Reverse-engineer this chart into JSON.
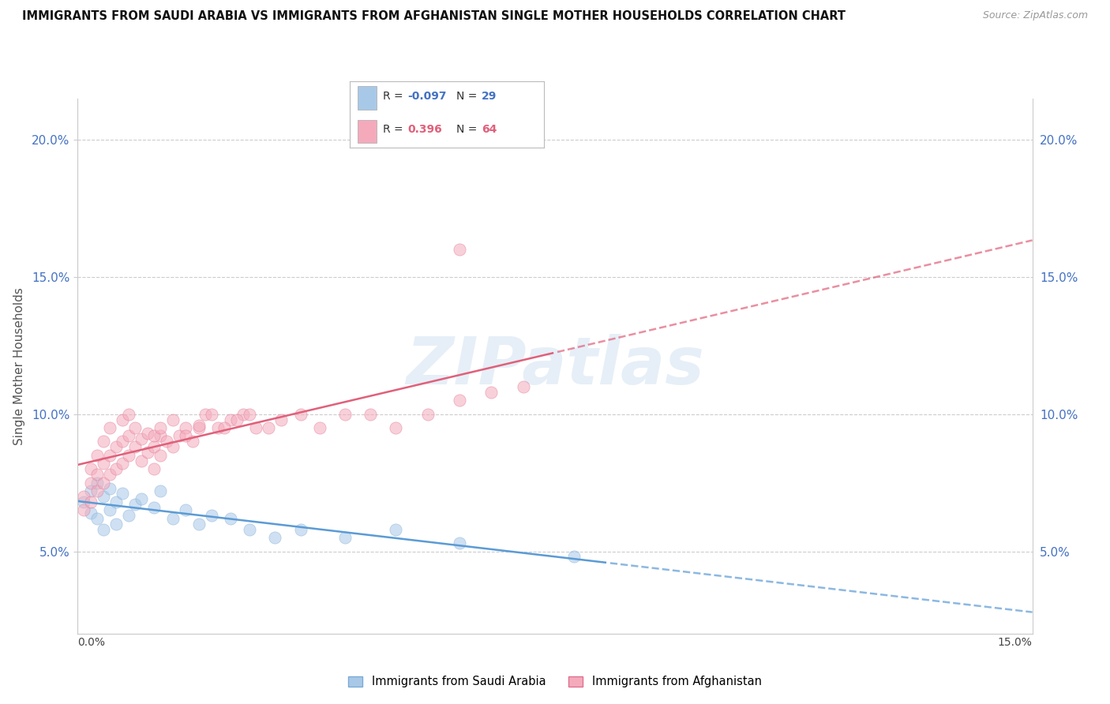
{
  "title": "IMMIGRANTS FROM SAUDI ARABIA VS IMMIGRANTS FROM AFGHANISTAN SINGLE MOTHER HOUSEHOLDS CORRELATION CHART",
  "source": "Source: ZipAtlas.com",
  "ylabel": "Single Mother Households",
  "watermark": "ZIPatlas",
  "series": [
    {
      "label": "Immigrants from Saudi Arabia",
      "color": "#A8C8E8",
      "edge_color": "#7BAAD4",
      "line_color": "#5B9BD5",
      "R": -0.097,
      "N": 29,
      "x": [
        0.001,
        0.002,
        0.002,
        0.003,
        0.003,
        0.004,
        0.004,
        0.005,
        0.005,
        0.006,
        0.006,
        0.007,
        0.008,
        0.009,
        0.01,
        0.012,
        0.013,
        0.015,
        0.017,
        0.019,
        0.021,
        0.024,
        0.027,
        0.031,
        0.035,
        0.042,
        0.05,
        0.06,
        0.078
      ],
      "y": [
        0.068,
        0.072,
        0.064,
        0.075,
        0.062,
        0.07,
        0.058,
        0.073,
        0.065,
        0.068,
        0.06,
        0.071,
        0.063,
        0.067,
        0.069,
        0.066,
        0.072,
        0.062,
        0.065,
        0.06,
        0.063,
        0.062,
        0.058,
        0.055,
        0.058,
        0.055,
        0.058,
        0.053,
        0.048
      ]
    },
    {
      "label": "Immigrants from Afghanistan",
      "color": "#F4AABB",
      "edge_color": "#E07090",
      "line_color": "#E0607A",
      "R": 0.396,
      "N": 64,
      "x": [
        0.001,
        0.001,
        0.002,
        0.002,
        0.002,
        0.003,
        0.003,
        0.003,
        0.004,
        0.004,
        0.004,
        0.005,
        0.005,
        0.005,
        0.006,
        0.006,
        0.007,
        0.007,
        0.007,
        0.008,
        0.008,
        0.008,
        0.009,
        0.009,
        0.01,
        0.01,
        0.011,
        0.011,
        0.012,
        0.012,
        0.013,
        0.013,
        0.014,
        0.015,
        0.016,
        0.017,
        0.018,
        0.019,
        0.02,
        0.022,
        0.024,
        0.026,
        0.028,
        0.03,
        0.032,
        0.035,
        0.038,
        0.042,
        0.046,
        0.05,
        0.055,
        0.06,
        0.065,
        0.07,
        0.012,
        0.013,
        0.015,
        0.017,
        0.019,
        0.021,
        0.023,
        0.025,
        0.027,
        0.06
      ],
      "y": [
        0.065,
        0.07,
        0.068,
        0.075,
        0.08,
        0.072,
        0.078,
        0.085,
        0.075,
        0.082,
        0.09,
        0.078,
        0.085,
        0.095,
        0.08,
        0.088,
        0.082,
        0.09,
        0.098,
        0.085,
        0.092,
        0.1,
        0.088,
        0.095,
        0.083,
        0.091,
        0.086,
        0.093,
        0.08,
        0.088,
        0.085,
        0.092,
        0.09,
        0.088,
        0.092,
        0.095,
        0.09,
        0.095,
        0.1,
        0.095,
        0.098,
        0.1,
        0.095,
        0.095,
        0.098,
        0.1,
        0.095,
        0.1,
        0.1,
        0.095,
        0.1,
        0.105,
        0.108,
        0.11,
        0.092,
        0.095,
        0.098,
        0.092,
        0.096,
        0.1,
        0.095,
        0.098,
        0.1,
        0.16
      ]
    }
  ],
  "xlim": [
    0.0,
    0.15
  ],
  "ylim": [
    0.02,
    0.215
  ],
  "yticks": [
    0.05,
    0.1,
    0.15,
    0.2
  ],
  "ytick_labels": [
    "5.0%",
    "10.0%",
    "15.0%",
    "20.0%"
  ],
  "grid_color": "#CCCCCC",
  "background_color": "#FFFFFF",
  "scatter_size": 120,
  "scatter_alpha": 0.55,
  "line_width": 1.8,
  "legend_R_colors": [
    "#4472C4",
    "#E0607A"
  ],
  "legend_box_colors": [
    "#A8C8E8",
    "#F4AABB"
  ]
}
